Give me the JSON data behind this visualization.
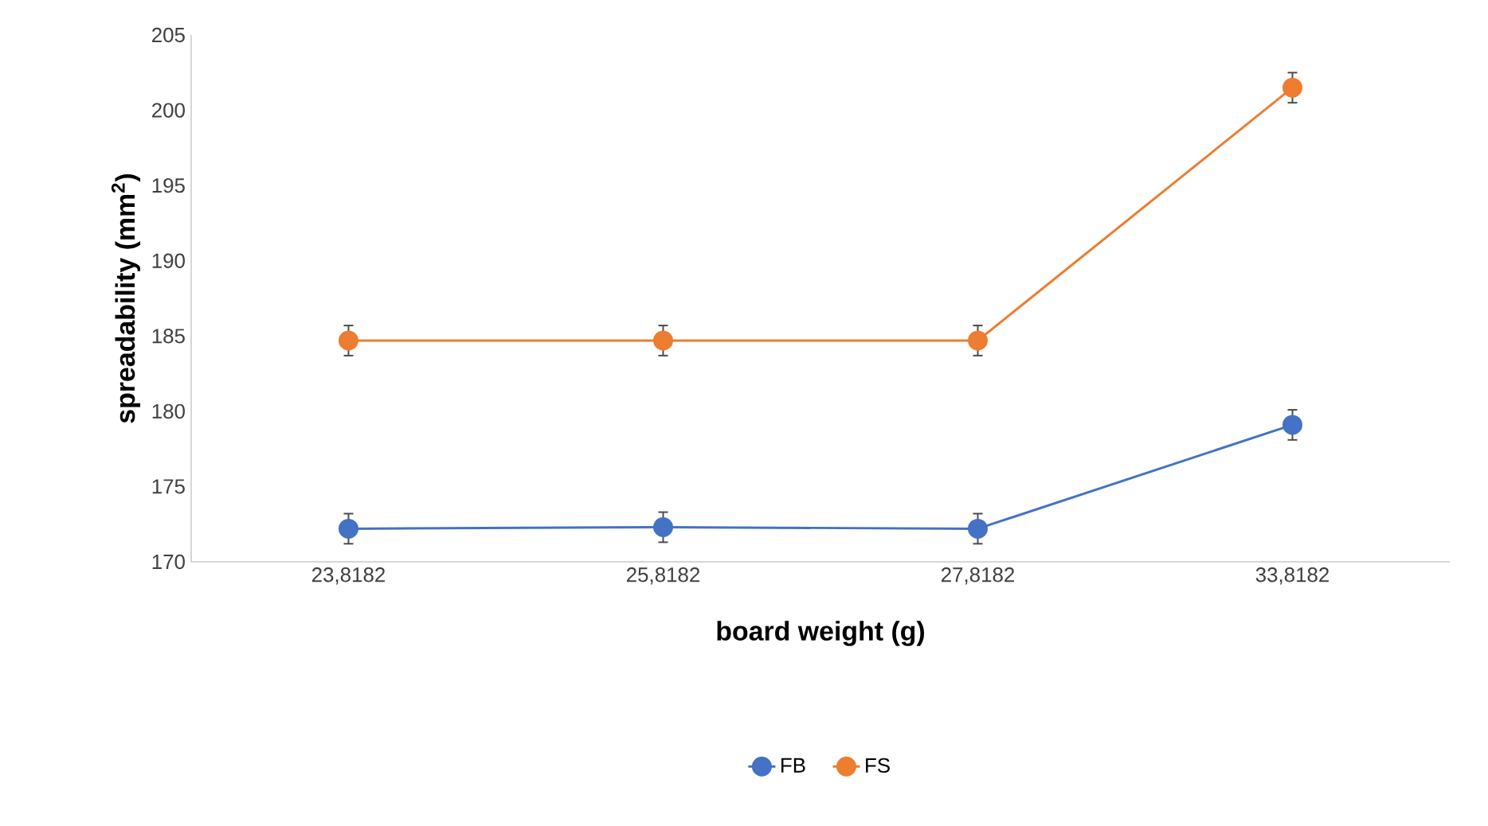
{
  "chart_data": {
    "type": "line",
    "xlabel": "board weight (g)",
    "ylabel": "spreadability  (mm$^{2}$)",
    "categories": [
      "23,8182",
      "25,8182",
      "27,8182",
      "33,8182"
    ],
    "series": [
      {
        "name": "FB",
        "color": "#4472c4",
        "values": [
          172.2,
          172.3,
          172.2,
          179.1
        ],
        "errors": [
          1,
          1,
          1,
          1
        ]
      },
      {
        "name": "FS",
        "color": "#ed7d31",
        "values": [
          184.7,
          184.7,
          184.7,
          201.5
        ],
        "errors": [
          1,
          1,
          1,
          1
        ]
      }
    ],
    "ylim": [
      170,
      205
    ],
    "yticks": [
      170,
      175,
      180,
      185,
      190,
      195,
      200,
      205
    ],
    "grid": false,
    "legend": "bottom",
    "marker": "circle",
    "line_style": "solid"
  }
}
